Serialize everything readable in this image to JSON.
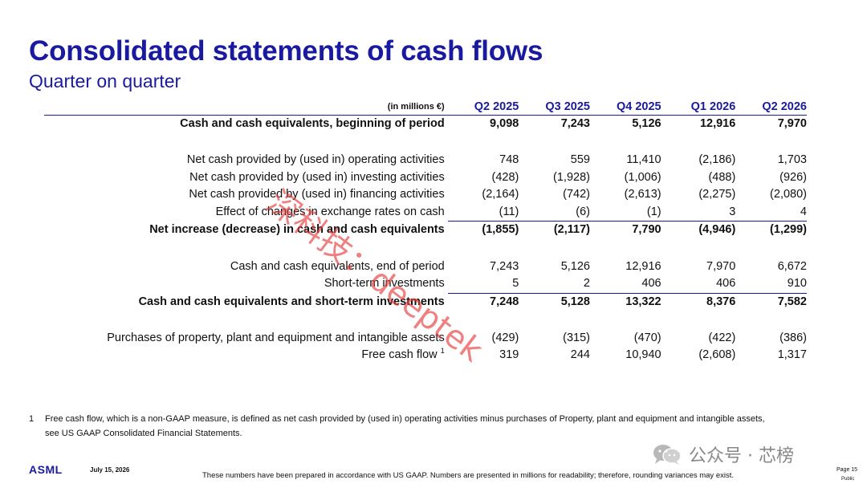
{
  "title": "Consolidated statements of cash flows",
  "subtitle": "Quarter on quarter",
  "table": {
    "unit_label": "(in millions €)",
    "columns": [
      "Q2 2025",
      "Q3 2025",
      "Q4 2025",
      "Q1 2026",
      "Q2 2026"
    ],
    "rows": {
      "begin": {
        "label": "Cash and cash equivalents, beginning of period",
        "values": [
          "9,098",
          "7,243",
          "5,126",
          "12,916",
          "7,970"
        ]
      },
      "operating": {
        "label": "Net cash provided by (used in) operating activities",
        "values": [
          "748",
          "559",
          "11,410",
          "(2,186)",
          "1,703"
        ]
      },
      "investing": {
        "label": "Net cash provided by (used in) investing activities",
        "values": [
          "(428)",
          "(1,928)",
          "(1,006)",
          "(488)",
          "(926)"
        ]
      },
      "financing": {
        "label": "Net cash provided by (used in) financing activities",
        "values": [
          "(2,164)",
          "(742)",
          "(2,613)",
          "(2,275)",
          "(2,080)"
        ]
      },
      "fx": {
        "label": "Effect of changes in exchange rates on cash",
        "values": [
          "(11)",
          "(6)",
          "(1)",
          "3",
          "4"
        ]
      },
      "net_change": {
        "label": "Net increase (decrease) in cash and cash equivalents",
        "values": [
          "(1,855)",
          "(2,117)",
          "7,790",
          "(4,946)",
          "(1,299)"
        ]
      },
      "end": {
        "label": "Cash and cash equivalents, end of period",
        "values": [
          "7,243",
          "5,126",
          "12,916",
          "7,970",
          "6,672"
        ]
      },
      "short_term": {
        "label": "Short-term investments",
        "values": [
          "5",
          "2",
          "406",
          "406",
          "910"
        ]
      },
      "total_cash": {
        "label": "Cash and cash equivalents and short-term investments",
        "values": [
          "7,248",
          "5,128",
          "13,322",
          "8,376",
          "7,582"
        ]
      },
      "capex": {
        "label": "Purchases of property, plant and equipment and intangible assets",
        "values": [
          "(429)",
          "(315)",
          "(470)",
          "(422)",
          "(386)"
        ]
      },
      "fcf": {
        "label": "Free cash flow",
        "superscript": "1",
        "values": [
          "319",
          "244",
          "10,940",
          "(2,608)",
          "1,317"
        ]
      }
    }
  },
  "footnote": {
    "number": "1",
    "text": "Free cash flow, which is a non-GAAP measure, is defined as net cash provided by (used in) operating activities minus purchases of Property, plant and equipment and intangible assets, see US GAAP Consolidated Financial Statements."
  },
  "footer": {
    "logo": "ASML",
    "date": "July 15, 2026",
    "disclaimer": "These numbers have been prepared in accordance with US GAAP.  Numbers are presented in millions for readability; therefore, rounding variances may exist.",
    "page": "Page 15",
    "classification": "Public"
  },
  "watermark_text": "深科技：deeptek",
  "wechat_label": "公众号 · 芯榜",
  "icons": {
    "wechat": "wechat-icon"
  },
  "colors": {
    "brand_blue": "#1a1aa0",
    "watermark": "#e63c3c"
  }
}
